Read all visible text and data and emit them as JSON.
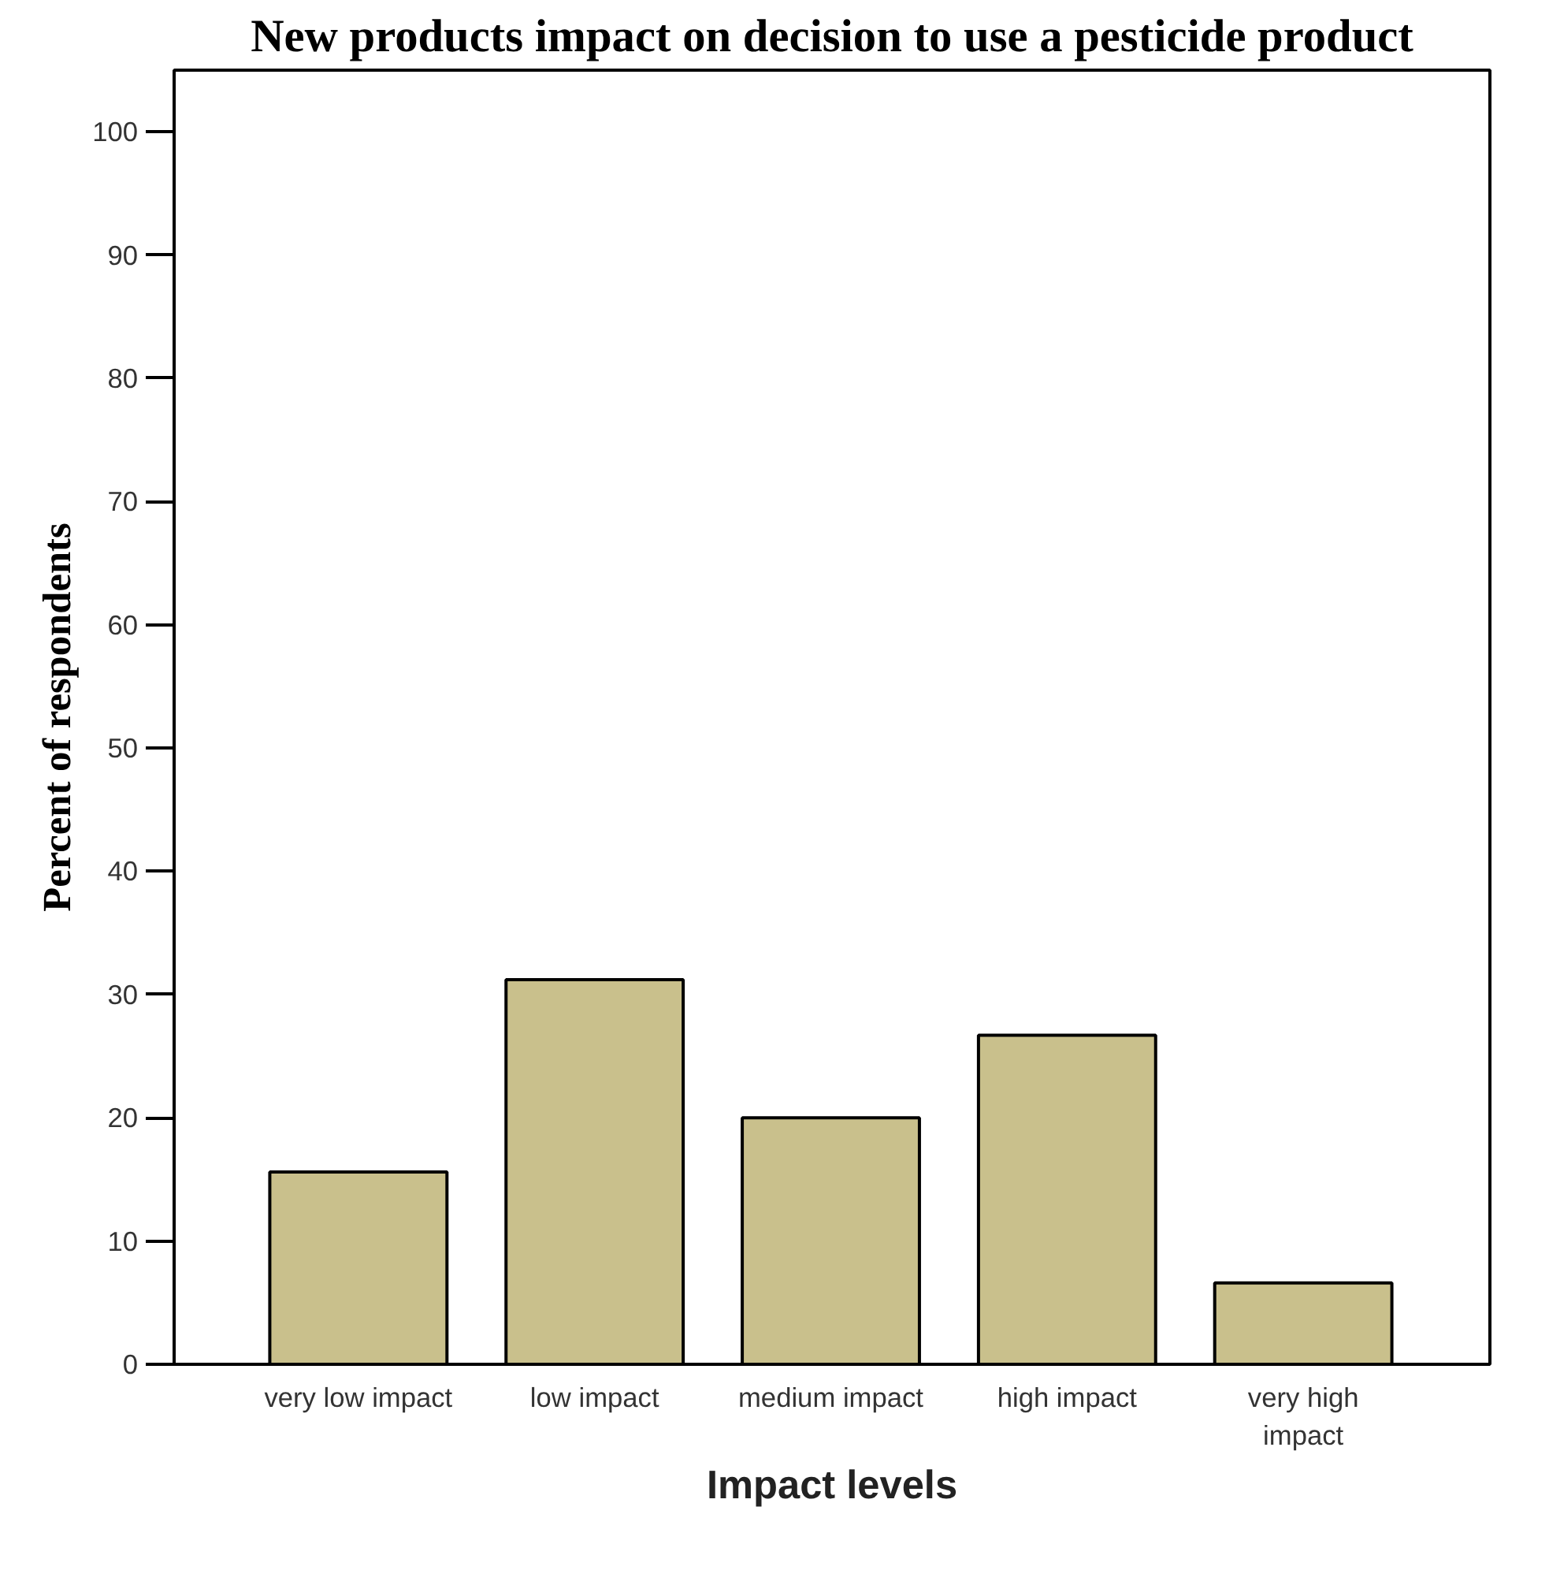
{
  "chart_data": {
    "type": "bar",
    "title": "New products impact on decision to use a pesticide product",
    "xlabel": "Impact levels",
    "ylabel": "Percent of respondents",
    "categories": [
      "very low impact",
      "low impact",
      "medium impact",
      "high impact",
      "very high impact"
    ],
    "values": [
      15.6,
      31.2,
      20.0,
      26.7,
      6.6
    ],
    "color": "#c9c08c",
    "ylim": [
      0,
      105
    ],
    "yticks": [
      0,
      10,
      20,
      30,
      40,
      50,
      60,
      70,
      80,
      90,
      100
    ],
    "grid": false
  }
}
